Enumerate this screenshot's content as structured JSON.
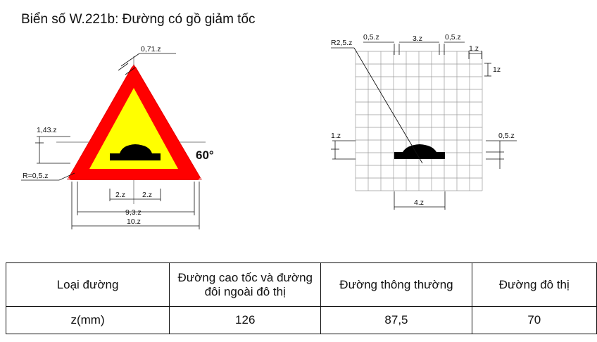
{
  "title": "Biển số W.221b: Đường có gồ giảm tốc",
  "sign_dims": {
    "top_corner": "0,71.z",
    "left_offset": "1,43.z",
    "corner_radius": "R=0,5.z",
    "angle": "60°",
    "bump_left": "2.z",
    "bump_right": "2.z",
    "inner_width": "9,3.z",
    "outer_width": "10.z"
  },
  "grid_dims": {
    "radius": "R2,5.z",
    "gap_left": "0,5.z",
    "bump_top": "3.z",
    "gap_right": "0,5.z",
    "cell_w": "1.z",
    "cell_h": "1z",
    "left_height": "1.z",
    "right_height": "0,5.z",
    "bottom_width": "4.z"
  },
  "colors": {
    "border": "#ff0000",
    "fill": "#ffff00",
    "symbol": "#000000",
    "grid": "#9a9a9a"
  },
  "table": {
    "headers": [
      "Loại đường",
      "Đường cao tốc và đường đôi ngoài đô thị",
      "Đường thông thường",
      "Đường đô thị"
    ],
    "row_label": "z(mm)",
    "values": [
      "126",
      "87,5",
      "70"
    ]
  }
}
